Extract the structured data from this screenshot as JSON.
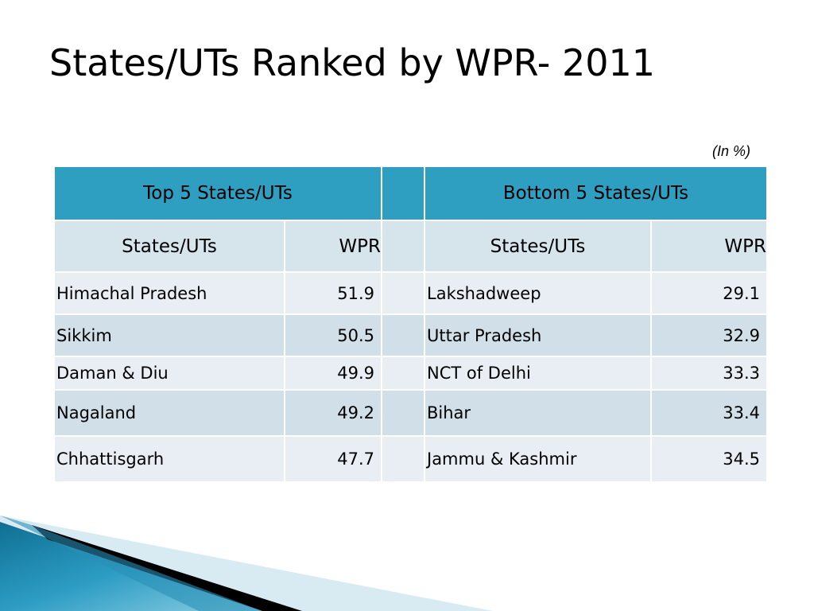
{
  "title": "States/UTs Ranked by WPR- 2011",
  "unit_note": "(In %)",
  "table": {
    "group_headers": {
      "top": "Top 5 States/UTs",
      "bottom": "Bottom 5 States/UTs"
    },
    "column_headers": {
      "state": "States/UTs",
      "wpr": "WPR"
    },
    "top5": [
      {
        "state": "Himachal Pradesh",
        "wpr": "51.9"
      },
      {
        "state": "Sikkim",
        "wpr": "50.5"
      },
      {
        "state": "Daman & Diu",
        "wpr": "49.9"
      },
      {
        "state": "Nagaland",
        "wpr": "49.2"
      },
      {
        "state": "Chhattisgarh",
        "wpr": "47.7"
      }
    ],
    "bottom5": [
      {
        "state": "Lakshadweep",
        "wpr": "29.1"
      },
      {
        "state": "Uttar Pradesh",
        "wpr": "32.9"
      },
      {
        "state": "NCT of Delhi",
        "wpr": "33.3"
      },
      {
        "state": "Bihar",
        "wpr": "33.4"
      },
      {
        "state": "Jammu & Kashmir",
        "wpr": "34.5"
      }
    ]
  },
  "colors": {
    "header_blue": "#2e9fc0",
    "subheader": "#d6e4ec",
    "row_light": "#e8eef3",
    "row_dark": "#d0dfe8"
  }
}
